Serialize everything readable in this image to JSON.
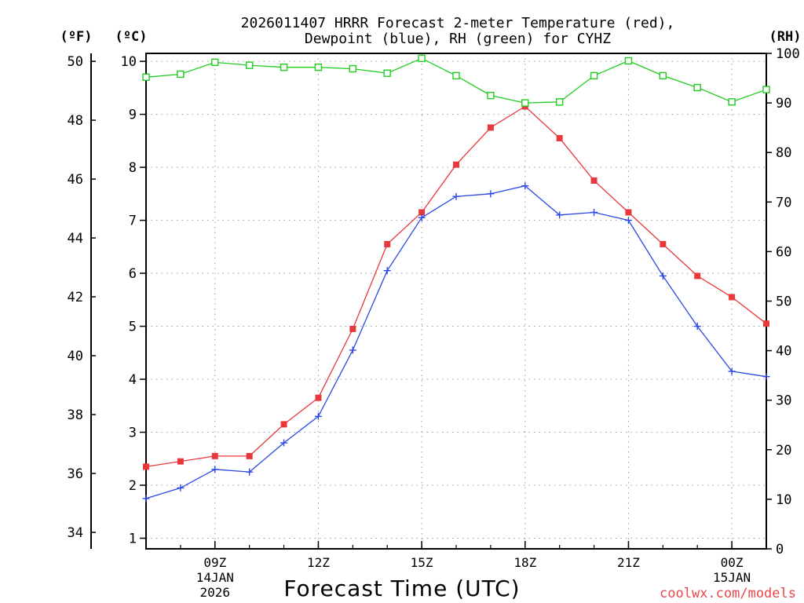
{
  "chart_data": {
    "type": "line",
    "title": "2026011407 HRRR Forecast 2-meter Temperature (red),",
    "subtitle": "Dewpoint (blue), RH (green) for CYHZ",
    "xlabel": "Forecast Time (UTC)",
    "credit": "coolwx.com/models",
    "units": {
      "fahrenheit": "(ºF)",
      "celsius": "(ºC)",
      "rh": "(RH)"
    },
    "x_hours": [
      7,
      8,
      9,
      10,
      11,
      12,
      13,
      14,
      15,
      16,
      17,
      18,
      19,
      20,
      21,
      22,
      23,
      24,
      25
    ],
    "xlim": [
      7,
      25
    ],
    "x_ticks": [
      {
        "hour": 9,
        "label": "09Z",
        "date": "14JAN",
        "year": "2026"
      },
      {
        "hour": 12,
        "label": "12Z"
      },
      {
        "hour": 15,
        "label": "15Z"
      },
      {
        "hour": 18,
        "label": "18Z"
      },
      {
        "hour": 21,
        "label": "21Z"
      },
      {
        "hour": 24,
        "label": "00Z",
        "date": "15JAN"
      }
    ],
    "ylim_celsius": [
      0.8,
      10.15
    ],
    "ylim_rh": [
      0,
      100
    ],
    "celsius_ticks": [
      "1",
      "2",
      "3",
      "4",
      "5",
      "6",
      "7",
      "8",
      "9",
      "10"
    ],
    "fahrenheit_ticks": [
      "34",
      "36",
      "38",
      "40",
      "42",
      "44",
      "46",
      "48",
      "50"
    ],
    "rh_ticks": [
      "0",
      "10",
      "20",
      "30",
      "40",
      "50",
      "60",
      "70",
      "80",
      "90",
      "100"
    ],
    "series": [
      {
        "name": "Temperature",
        "color": "#e8383c",
        "marker": "filled-square",
        "values": [
          2.35,
          2.45,
          2.55,
          2.55,
          3.15,
          3.65,
          4.95,
          6.55,
          7.15,
          8.05,
          8.75,
          9.15,
          8.55,
          7.75,
          7.15,
          6.55,
          5.95,
          5.55,
          5.05
        ]
      },
      {
        "name": "Dewpoint",
        "color": "#2a48e6",
        "marker": "plus",
        "values": [
          1.75,
          1.95,
          2.3,
          2.25,
          2.8,
          3.3,
          4.55,
          6.05,
          7.05,
          7.45,
          7.5,
          7.65,
          7.1,
          7.15,
          7.0,
          5.95,
          5.0,
          4.15,
          4.05
        ]
      },
      {
        "name": "RH",
        "color": "#22cc22",
        "marker": "open-square",
        "axis": "rh",
        "values": [
          95.2,
          95.8,
          98.2,
          97.6,
          97.2,
          97.2,
          96.9,
          96.0,
          99.0,
          95.5,
          91.5,
          90.0,
          90.2,
          95.5,
          98.5,
          95.5,
          93.1,
          90.2,
          92.7
        ]
      }
    ]
  }
}
